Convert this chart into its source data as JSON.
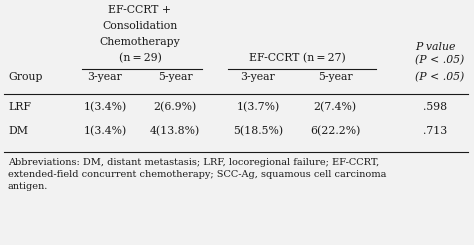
{
  "efp_header": [
    "EF-CCRT +",
    "Consolidation",
    "Chemotherapy",
    "(n = 29)"
  ],
  "ef_header": "EF-CCRT (n = 27)",
  "pval_header": [
    "P value",
    "(P < .05)"
  ],
  "subheaders": [
    "Group",
    "3-year",
    "5-year",
    "3-year",
    "5-year"
  ],
  "rows": [
    {
      "group": "LRF",
      "efp_3yr": "1(3.4%)",
      "efp_5yr": "2(6.9%)",
      "ef_3yr": "1(3.7%)",
      "ef_5yr": "2(7.4%)",
      "pval": ".598"
    },
    {
      "group": "DM",
      "efp_3yr": "1(3.4%)",
      "efp_5yr": "4(13.8%)",
      "ef_3yr": "5(18.5%)",
      "ef_5yr": "6(22.2%)",
      "pval": ".713"
    }
  ],
  "footnote": "Abbreviations: DM, distant metastasis; LRF, locoregional failure; EF-CCRT,\nextended-field concurrent chemotherapy; SCC-Ag, squamous cell carcinoma\nantigen.",
  "bg_color": "#f2f2f2",
  "text_color": "#1a1a1a",
  "font_size": 7.8,
  "footnote_font_size": 7.0
}
